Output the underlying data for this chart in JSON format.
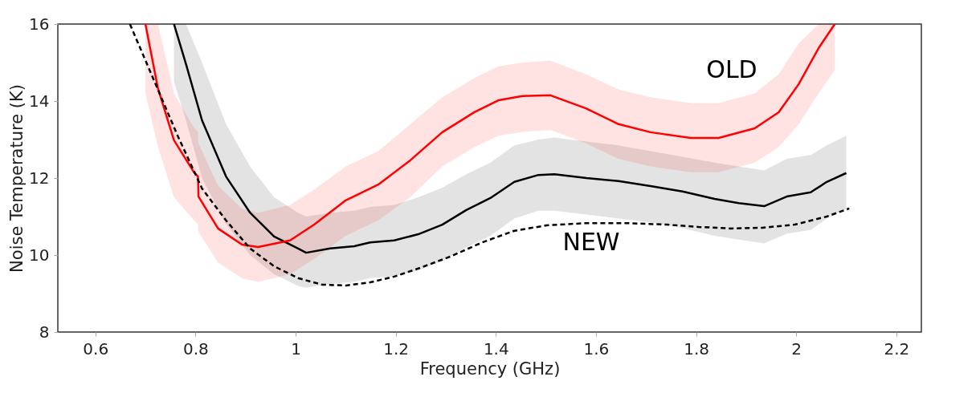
{
  "chart_data": {
    "type": "line",
    "xlabel": "Frequency (GHz)",
    "ylabel": "Noise Temperature (K)",
    "xlim": [
      0.525,
      2.25
    ],
    "xticks": [
      0.6,
      0.8,
      1,
      1.2,
      1.4,
      1.6,
      1.8,
      2,
      2.2
    ],
    "ylim": [
      8,
      16
    ],
    "yticks": [
      8,
      10,
      12,
      14,
      16
    ],
    "grid": false,
    "series": [
      {
        "color": "#000000",
        "line_style": "solid",
        "x": [
          0.757,
          0.781,
          0.813,
          0.861,
          0.909,
          0.957,
          1.005,
          1.021,
          1.069,
          1.117,
          1.149,
          1.197,
          1.245,
          1.293,
          1.341,
          1.389,
          1.437,
          1.485,
          1.517,
          1.581,
          1.645,
          1.709,
          1.773,
          1.837,
          1.885,
          1.936,
          1.981,
          2.029,
          2.061,
          2.1
        ],
        "values": [
          16,
          14.96,
          13.5,
          12.04,
          11.1,
          10.48,
          10.17,
          10.06,
          10.17,
          10.23,
          10.33,
          10.38,
          10.54,
          10.79,
          11.17,
          11.48,
          11.9,
          12.08,
          12.1,
          12.0,
          11.92,
          11.79,
          11.65,
          11.46,
          11.35,
          11.27,
          11.52,
          11.63,
          11.9,
          12.13
        ],
        "lower": [
          14.5,
          13.5,
          12.0,
          10.8,
          10.0,
          9.5,
          9.2,
          9.15,
          9.25,
          9.3,
          9.4,
          9.45,
          9.6,
          9.85,
          10.2,
          10.5,
          10.95,
          11.15,
          11.15,
          11.05,
          10.95,
          10.85,
          10.7,
          10.5,
          10.4,
          10.3,
          10.55,
          10.65,
          10.95,
          11.2
        ],
        "upper": [
          16,
          16,
          15.0,
          13.4,
          12.3,
          11.5,
          11.1,
          11.0,
          11.1,
          11.15,
          11.25,
          11.3,
          11.5,
          11.75,
          12.1,
          12.4,
          12.85,
          13.0,
          13.05,
          12.95,
          12.85,
          12.7,
          12.55,
          12.4,
          12.3,
          12.2,
          12.5,
          12.6,
          12.85,
          13.1
        ]
      },
      {
        "color": "#ff0000",
        "line_style": "solid",
        "x": [
          0.7,
          0.725,
          0.757,
          0.797,
          0.805,
          0.806,
          0.845,
          0.893,
          0.925,
          0.989,
          1.037,
          1.1,
          1.165,
          1.229,
          1.293,
          1.357,
          1.405,
          1.453,
          1.509,
          1.58,
          1.645,
          1.709,
          1.789,
          1.845,
          1.917,
          1.965,
          2.005,
          2.045,
          2.077
        ],
        "values": [
          16,
          14.33,
          12.98,
          12.15,
          12.04,
          11.52,
          10.69,
          10.27,
          10.21,
          10.38,
          10.79,
          11.42,
          11.83,
          12.46,
          13.19,
          13.71,
          14.02,
          14.13,
          14.15,
          13.81,
          13.4,
          13.19,
          13.04,
          13.04,
          13.29,
          13.71,
          14.44,
          15.38,
          16
        ],
        "lower": [
          14.2,
          12.8,
          11.5,
          10.9,
          10.8,
          10.6,
          9.8,
          9.4,
          9.3,
          9.5,
          9.9,
          10.5,
          10.9,
          11.5,
          12.3,
          12.8,
          13.1,
          13.2,
          13.25,
          12.9,
          12.5,
          12.3,
          12.15,
          12.15,
          12.4,
          12.8,
          13.4,
          14.2,
          14.8
        ],
        "upper": [
          16,
          16,
          14.2,
          13.3,
          13.2,
          12.9,
          11.8,
          11.2,
          11.1,
          11.3,
          11.7,
          12.3,
          12.7,
          13.4,
          14.1,
          14.6,
          14.9,
          15.0,
          15.05,
          14.7,
          14.3,
          14.1,
          13.95,
          13.95,
          14.2,
          14.7,
          15.5,
          16,
          16
        ]
      },
      {
        "color": "#000000",
        "line_style": "dashed",
        "x": [
          0.669,
          0.717,
          0.765,
          0.813,
          0.861,
          0.909,
          0.957,
          1.005,
          1.053,
          1.101,
          1.149,
          1.197,
          1.245,
          1.309,
          1.373,
          1.437,
          1.501,
          1.581,
          1.661,
          1.741,
          1.805,
          1.869,
          1.933,
          1.997,
          2.061,
          2.106
        ],
        "values": [
          16,
          14.54,
          13.08,
          11.73,
          10.9,
          10.17,
          9.71,
          9.4,
          9.23,
          9.21,
          9.29,
          9.44,
          9.65,
          9.96,
          10.33,
          10.63,
          10.77,
          10.83,
          10.83,
          10.79,
          10.73,
          10.69,
          10.71,
          10.79,
          11.0,
          11.21
        ]
      }
    ],
    "annotations": [
      "OLD",
      "NEW"
    ]
  }
}
